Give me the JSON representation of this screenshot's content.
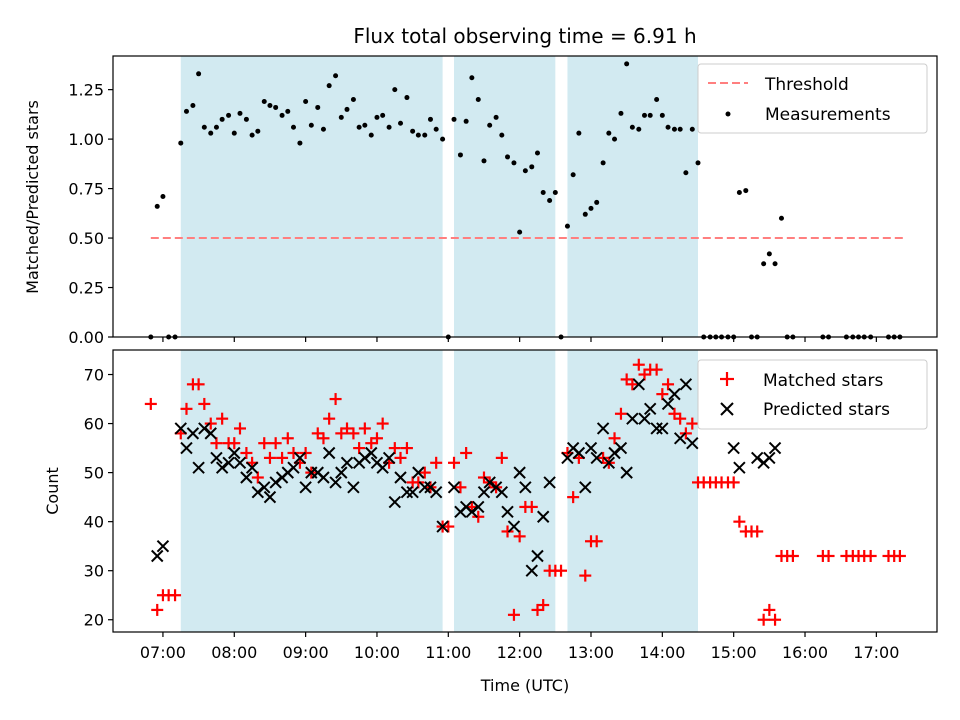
{
  "chart_data": [
    {
      "type": "scatter",
      "title": "Flux total observing time = 6.91 h",
      "ylabel": "Matched/Predicted stars",
      "ylim": [
        0,
        1.42
      ],
      "yticks": [
        0,
        0.25,
        0.5,
        0.75,
        1.0,
        1.25
      ],
      "ytick_labels": [
        "0.00",
        "0.25",
        "0.50",
        "0.75",
        "1.00",
        "1.25"
      ],
      "xlim": [
        6.3,
        17.85
      ],
      "shaded_intervals": [
        [
          7.25,
          10.92
        ],
        [
          11.08,
          12.5
        ],
        [
          12.67,
          14.5
        ]
      ],
      "shade_color": "#add8e6",
      "legend_position": "upper right",
      "threshold": {
        "name": "Threshold",
        "value": 0.5,
        "x_range": [
          6.83,
          17.4
        ],
        "color": "#ff7f7f"
      },
      "measurements": {
        "name": "Measurements",
        "color": "#000000",
        "x": [
          6.83,
          6.92,
          7.0,
          7.08,
          7.17,
          7.25,
          7.33,
          7.42,
          7.5,
          7.58,
          7.67,
          7.75,
          7.83,
          7.92,
          8.0,
          8.08,
          8.17,
          8.25,
          8.33,
          8.42,
          8.5,
          8.58,
          8.67,
          8.75,
          8.83,
          8.92,
          9.0,
          9.08,
          9.17,
          9.25,
          9.33,
          9.42,
          9.5,
          9.58,
          9.67,
          9.75,
          9.83,
          9.92,
          10.0,
          10.08,
          10.17,
          10.25,
          10.33,
          10.42,
          10.5,
          10.58,
          10.67,
          10.75,
          10.83,
          10.92,
          11.0,
          11.08,
          11.17,
          11.25,
          11.33,
          11.42,
          11.5,
          11.58,
          11.67,
          11.75,
          11.83,
          11.92,
          12.0,
          12.08,
          12.17,
          12.25,
          12.33,
          12.42,
          12.5,
          12.58,
          12.67,
          12.75,
          12.83,
          12.92,
          13.0,
          13.08,
          13.17,
          13.25,
          13.33,
          13.42,
          13.5,
          13.58,
          13.67,
          13.75,
          13.83,
          13.92,
          14.0,
          14.08,
          14.17,
          14.25,
          14.33,
          14.42,
          14.5,
          14.58,
          14.67,
          14.75,
          14.83,
          14.92,
          15.0,
          15.08,
          15.17,
          15.25,
          15.33,
          15.42,
          15.5,
          15.58,
          15.67,
          15.75,
          15.83,
          16.25,
          16.33,
          16.58,
          16.67,
          16.75,
          16.83,
          16.92,
          17.17,
          17.25,
          17.33
        ],
        "y": [
          0.0,
          0.66,
          0.71,
          0.0,
          0.0,
          0.98,
          1.14,
          1.17,
          1.33,
          1.06,
          1.03,
          1.06,
          1.1,
          1.12,
          1.03,
          1.13,
          1.1,
          1.02,
          1.04,
          1.19,
          1.17,
          1.16,
          1.12,
          1.14,
          1.06,
          0.98,
          1.19,
          1.07,
          1.16,
          1.05,
          1.27,
          1.32,
          1.11,
          1.15,
          1.2,
          1.06,
          1.07,
          1.02,
          1.11,
          1.12,
          1.06,
          1.25,
          1.08,
          1.21,
          1.04,
          1.02,
          1.02,
          1.1,
          1.05,
          1.0,
          0.0,
          1.1,
          0.92,
          1.09,
          1.31,
          1.2,
          0.89,
          1.07,
          1.11,
          1.02,
          0.91,
          0.88,
          0.53,
          0.84,
          0.86,
          0.93,
          0.73,
          0.69,
          0.73,
          0.0,
          0.56,
          0.82,
          1.03,
          0.62,
          0.65,
          0.68,
          0.88,
          1.03,
          1.0,
          1.13,
          1.38,
          1.06,
          1.05,
          1.12,
          1.12,
          1.2,
          1.12,
          1.06,
          1.05,
          1.05,
          0.83,
          1.05,
          0.88,
          0.0,
          0.0,
          0.0,
          0.0,
          0.0,
          0.0,
          0.73,
          0.74,
          0.0,
          0.0,
          0.37,
          0.42,
          0.37,
          0.6,
          0.0,
          0.0,
          0.0,
          0.0,
          0.0,
          0.0,
          0.0,
          0.0,
          0.0,
          0.0,
          0.0,
          0.0
        ]
      }
    },
    {
      "type": "scatter",
      "xlabel": "Time (UTC)",
      "ylabel": "Count",
      "ylim": [
        17.5,
        75
      ],
      "yticks": [
        20,
        30,
        40,
        50,
        60,
        70
      ],
      "ytick_labels": [
        "20",
        "30",
        "40",
        "50",
        "60",
        "70"
      ],
      "xlim": [
        6.3,
        17.85
      ],
      "xticks": [
        7,
        8,
        9,
        10,
        11,
        12,
        13,
        14,
        15,
        16,
        17
      ],
      "xtick_labels": [
        "07:00",
        "08:00",
        "09:00",
        "10:00",
        "11:00",
        "12:00",
        "13:00",
        "14:00",
        "15:00",
        "16:00",
        "17:00"
      ],
      "shaded_intervals": [
        [
          7.25,
          10.92
        ],
        [
          11.08,
          12.5
        ],
        [
          12.67,
          14.5
        ]
      ],
      "shade_color": "#add8e6",
      "legend_position": "upper right",
      "series": [
        {
          "name": "Matched stars",
          "marker": "+",
          "color": "#ff0000",
          "x": [
            6.83,
            6.92,
            7.0,
            7.08,
            7.17,
            7.25,
            7.33,
            7.42,
            7.5,
            7.58,
            7.67,
            7.75,
            7.83,
            7.92,
            8.0,
            8.08,
            8.17,
            8.25,
            8.33,
            8.42,
            8.5,
            8.58,
            8.67,
            8.75,
            8.83,
            8.92,
            9.0,
            9.08,
            9.17,
            9.25,
            9.33,
            9.42,
            9.5,
            9.58,
            9.67,
            9.75,
            9.83,
            9.92,
            10.0,
            10.08,
            10.17,
            10.25,
            10.33,
            10.42,
            10.5,
            10.58,
            10.67,
            10.75,
            10.83,
            10.92,
            11.0,
            11.08,
            11.17,
            11.25,
            11.33,
            11.42,
            11.5,
            11.58,
            11.67,
            11.75,
            11.83,
            11.92,
            12.0,
            12.08,
            12.17,
            12.25,
            12.33,
            12.42,
            12.5,
            12.58,
            12.67,
            12.75,
            12.83,
            12.92,
            13.0,
            13.08,
            13.17,
            13.25,
            13.33,
            13.42,
            13.5,
            13.58,
            13.67,
            13.75,
            13.83,
            13.92,
            14.0,
            14.08,
            14.17,
            14.25,
            14.33,
            14.42,
            14.5,
            14.58,
            14.67,
            14.75,
            14.83,
            14.92,
            15.0,
            15.08,
            15.17,
            15.25,
            15.33,
            15.42,
            15.5,
            15.58,
            15.67,
            15.75,
            15.83,
            16.25,
            16.33,
            16.58,
            16.67,
            16.75,
            16.83,
            16.92,
            17.17,
            17.25,
            17.33
          ],
          "y": [
            64,
            22,
            25,
            25,
            25,
            58,
            63,
            68,
            68,
            64,
            60,
            56,
            61,
            56,
            56,
            59,
            54,
            52,
            49,
            56,
            53,
            56,
            53,
            57,
            54,
            52,
            54,
            50,
            58,
            57,
            61,
            65,
            58,
            59,
            58,
            55,
            59,
            56,
            57,
            60,
            52,
            55,
            53,
            55,
            48,
            48,
            50,
            47,
            52,
            39,
            39,
            52,
            47,
            54,
            43,
            41,
            49,
            48,
            47,
            53,
            38,
            21,
            37,
            43,
            43,
            22,
            23,
            30,
            30,
            30,
            54,
            45,
            53,
            29,
            36,
            36,
            53,
            52,
            57,
            62,
            69,
            68,
            72,
            70,
            71,
            71,
            66,
            68,
            62,
            61,
            58,
            60,
            48,
            48,
            48,
            48,
            48,
            48,
            48,
            40,
            38,
            38,
            38,
            20,
            22,
            20,
            33,
            33,
            33,
            33,
            33,
            33,
            33,
            33,
            33,
            33,
            33,
            33,
            33
          ]
        },
        {
          "name": "Predicted stars",
          "marker": "x",
          "color": "#000000",
          "x": [
            6.92,
            7.0,
            7.25,
            7.33,
            7.42,
            7.5,
            7.58,
            7.67,
            7.75,
            7.83,
            7.92,
            8.0,
            8.08,
            8.17,
            8.25,
            8.33,
            8.42,
            8.5,
            8.58,
            8.67,
            8.75,
            8.83,
            8.92,
            9.0,
            9.08,
            9.17,
            9.25,
            9.33,
            9.42,
            9.5,
            9.58,
            9.67,
            9.75,
            9.83,
            9.92,
            10.0,
            10.08,
            10.17,
            10.25,
            10.33,
            10.42,
            10.5,
            10.58,
            10.67,
            10.75,
            10.83,
            10.92,
            11.08,
            11.17,
            11.25,
            11.33,
            11.42,
            11.5,
            11.58,
            11.67,
            11.75,
            11.83,
            11.92,
            12.0,
            12.08,
            12.17,
            12.25,
            12.33,
            12.42,
            12.67,
            12.75,
            12.83,
            12.92,
            13.0,
            13.08,
            13.17,
            13.25,
            13.33,
            13.42,
            13.5,
            13.58,
            13.67,
            13.75,
            13.83,
            13.92,
            14.0,
            14.08,
            14.17,
            14.25,
            14.33,
            14.42,
            15.0,
            15.08,
            15.33,
            15.42,
            15.5,
            15.58
          ],
          "y": [
            33,
            35,
            59,
            55,
            58,
            51,
            59,
            58,
            53,
            51,
            52,
            54,
            52,
            49,
            51,
            46,
            47,
            45,
            48,
            49,
            50,
            51,
            53,
            47,
            50,
            50,
            49,
            54,
            48,
            50,
            52,
            47,
            52,
            53,
            54,
            52,
            51,
            53,
            44,
            49,
            46,
            46,
            50,
            47,
            47,
            46,
            39,
            47,
            42,
            43,
            42,
            43,
            46,
            48,
            47,
            46,
            42,
            39,
            50,
            47,
            30,
            33,
            41,
            48,
            53,
            55,
            54,
            47,
            55,
            53,
            59,
            52,
            54,
            55,
            50,
            61,
            68,
            61,
            63,
            59,
            59,
            64,
            66,
            57,
            68,
            56,
            55,
            51,
            53,
            52,
            53,
            55
          ]
        }
      ]
    }
  ]
}
